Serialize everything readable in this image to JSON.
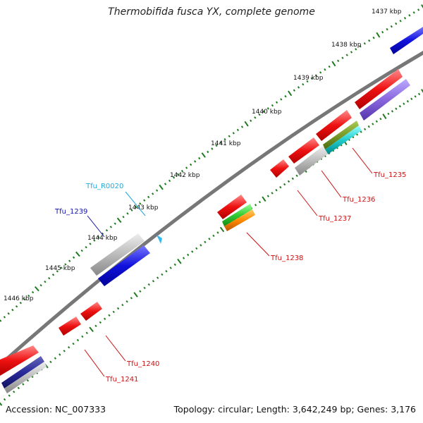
{
  "title": "Thermobifida fusca YX, complete genome",
  "footer": {
    "accession": "Accession: NC_007333",
    "stats": "Topology: circular; Length: 3,642,249 bp; Genes: 3,176"
  },
  "scale_labels": [
    "1437 kbp",
    "1438 kbp",
    "1439 kbp",
    "1440 kbp",
    "1441 kbp",
    "1442 kbp",
    "1443 kbp",
    "1444 kbp",
    "1445 kbp",
    "1446 kbp"
  ],
  "gene_labels": [
    "Tfu_1235",
    "Tfu_1236",
    "Tfu_1237",
    "Tfu_1238",
    "Tfu_1239",
    "Tfu_R0020",
    "Tfu_1240",
    "Tfu_1241"
  ],
  "colors": {
    "backbone": "#777777",
    "tick": "#1f7a1f",
    "cds": "#ee1111",
    "forward_gene": "#1111dd",
    "reverse_gene": "#2a2a9a",
    "gene_shade": "#bbbbbb",
    "purple": "#8866dd",
    "olive": "#7a9a2a",
    "cyan": "#22cccc",
    "green": "#33cc33",
    "orange": "#ff8800",
    "trna": "#33bbee",
    "label_red": "#cc1111",
    "label_blue": "#1111aa",
    "label_cyan": "#22aadd"
  }
}
